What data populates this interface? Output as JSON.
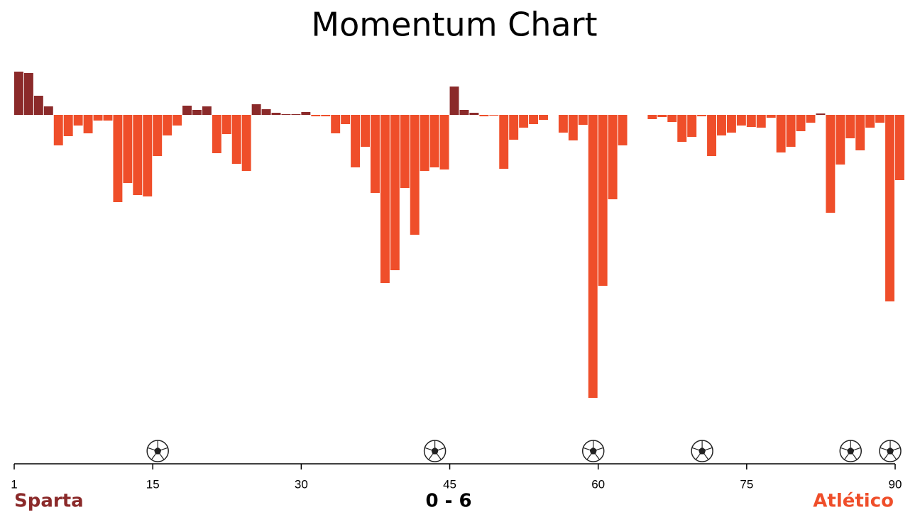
{
  "chart_data": {
    "type": "momentum",
    "title": "Momentum Chart",
    "x": [
      1,
      2,
      3,
      4,
      5,
      6,
      7,
      8,
      9,
      10,
      11,
      12,
      13,
      14,
      15,
      16,
      17,
      18,
      19,
      20,
      21,
      22,
      23,
      24,
      25,
      26,
      27,
      28,
      29,
      30,
      31,
      32,
      33,
      34,
      35,
      36,
      37,
      38,
      39,
      40,
      41,
      42,
      43,
      44,
      45,
      46,
      47,
      48,
      49,
      50,
      51,
      52,
      53,
      54,
      55,
      56,
      57,
      58,
      59,
      60,
      61,
      62,
      63,
      64,
      65,
      66,
      67,
      68,
      69,
      70,
      71,
      72,
      73,
      74,
      75,
      76,
      77,
      78,
      79,
      80,
      81,
      82,
      83,
      84,
      85,
      86,
      87,
      88,
      89,
      90
    ],
    "values": [
      15.25,
      14.75,
      6.75,
      3,
      -10.75,
      -7.5,
      -3.75,
      -6.5,
      -2,
      -2,
      -30.75,
      -24,
      -28.25,
      -28.75,
      -14.5,
      -7.25,
      -3.75,
      3.25,
      1.75,
      3,
      -13.5,
      -6.75,
      -17.25,
      -19.75,
      3.75,
      2,
      0.75,
      0.25,
      0.25,
      1,
      -0.5,
      -0.5,
      -6.5,
      -3.25,
      -18.5,
      -11.25,
      -27.5,
      -59.25,
      -54.75,
      -25.75,
      -42.25,
      -19.75,
      -18.5,
      -19.25,
      10,
      1.75,
      0.75,
      -0.5,
      -0.25,
      -19,
      -8.75,
      -4.5,
      -3.25,
      -1.75,
      0,
      -6.25,
      -9,
      -3.5,
      -99.75,
      -60.25,
      -29.75,
      -10.75,
      0,
      0,
      -1.5,
      -0.75,
      -2.5,
      -9.5,
      -7.75,
      -0.5,
      -14.5,
      -7.25,
      -6.25,
      -3.75,
      -4.25,
      -4.5,
      -1,
      -13.25,
      -11.25,
      -5.75,
      -2.75,
      0.5,
      -34.5,
      -17.5,
      -8.25,
      -12.5,
      -4.5,
      -2.75,
      -65.75,
      -23
    ],
    "xlim": [
      1,
      90
    ],
    "xticks": [
      1,
      15,
      30,
      45,
      60,
      75,
      90
    ],
    "teams": [
      {
        "name": "Sparta",
        "color": "#8b2a2a"
      },
      {
        "name": "Atlético",
        "color": "#ef4e2a"
      }
    ],
    "score": "0 - 6",
    "goals": [
      15,
      43,
      59,
      70,
      85,
      89
    ]
  }
}
